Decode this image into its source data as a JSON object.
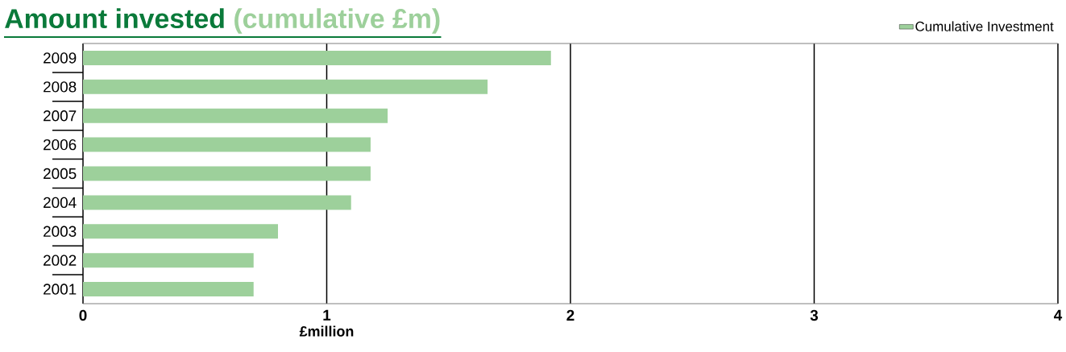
{
  "chart_data": {
    "type": "bar",
    "orientation": "horizontal",
    "title": "Amount invested",
    "subtitle": "(cumulative £m)",
    "xlabel": "£million",
    "categories": [
      "2009",
      "2008",
      "2007",
      "2006",
      "2005",
      "2004",
      "2003",
      "2002",
      "2001"
    ],
    "series": [
      {
        "name": "Cumulative Investment",
        "color": "#9dd09b",
        "values": [
          1.92,
          1.66,
          1.25,
          1.18,
          1.18,
          1.1,
          0.8,
          0.7,
          0.7
        ]
      }
    ],
    "xlim": [
      0,
      4
    ],
    "xticks": [
      0,
      1,
      2,
      3,
      4
    ],
    "grid": "x",
    "legend": "top right"
  }
}
